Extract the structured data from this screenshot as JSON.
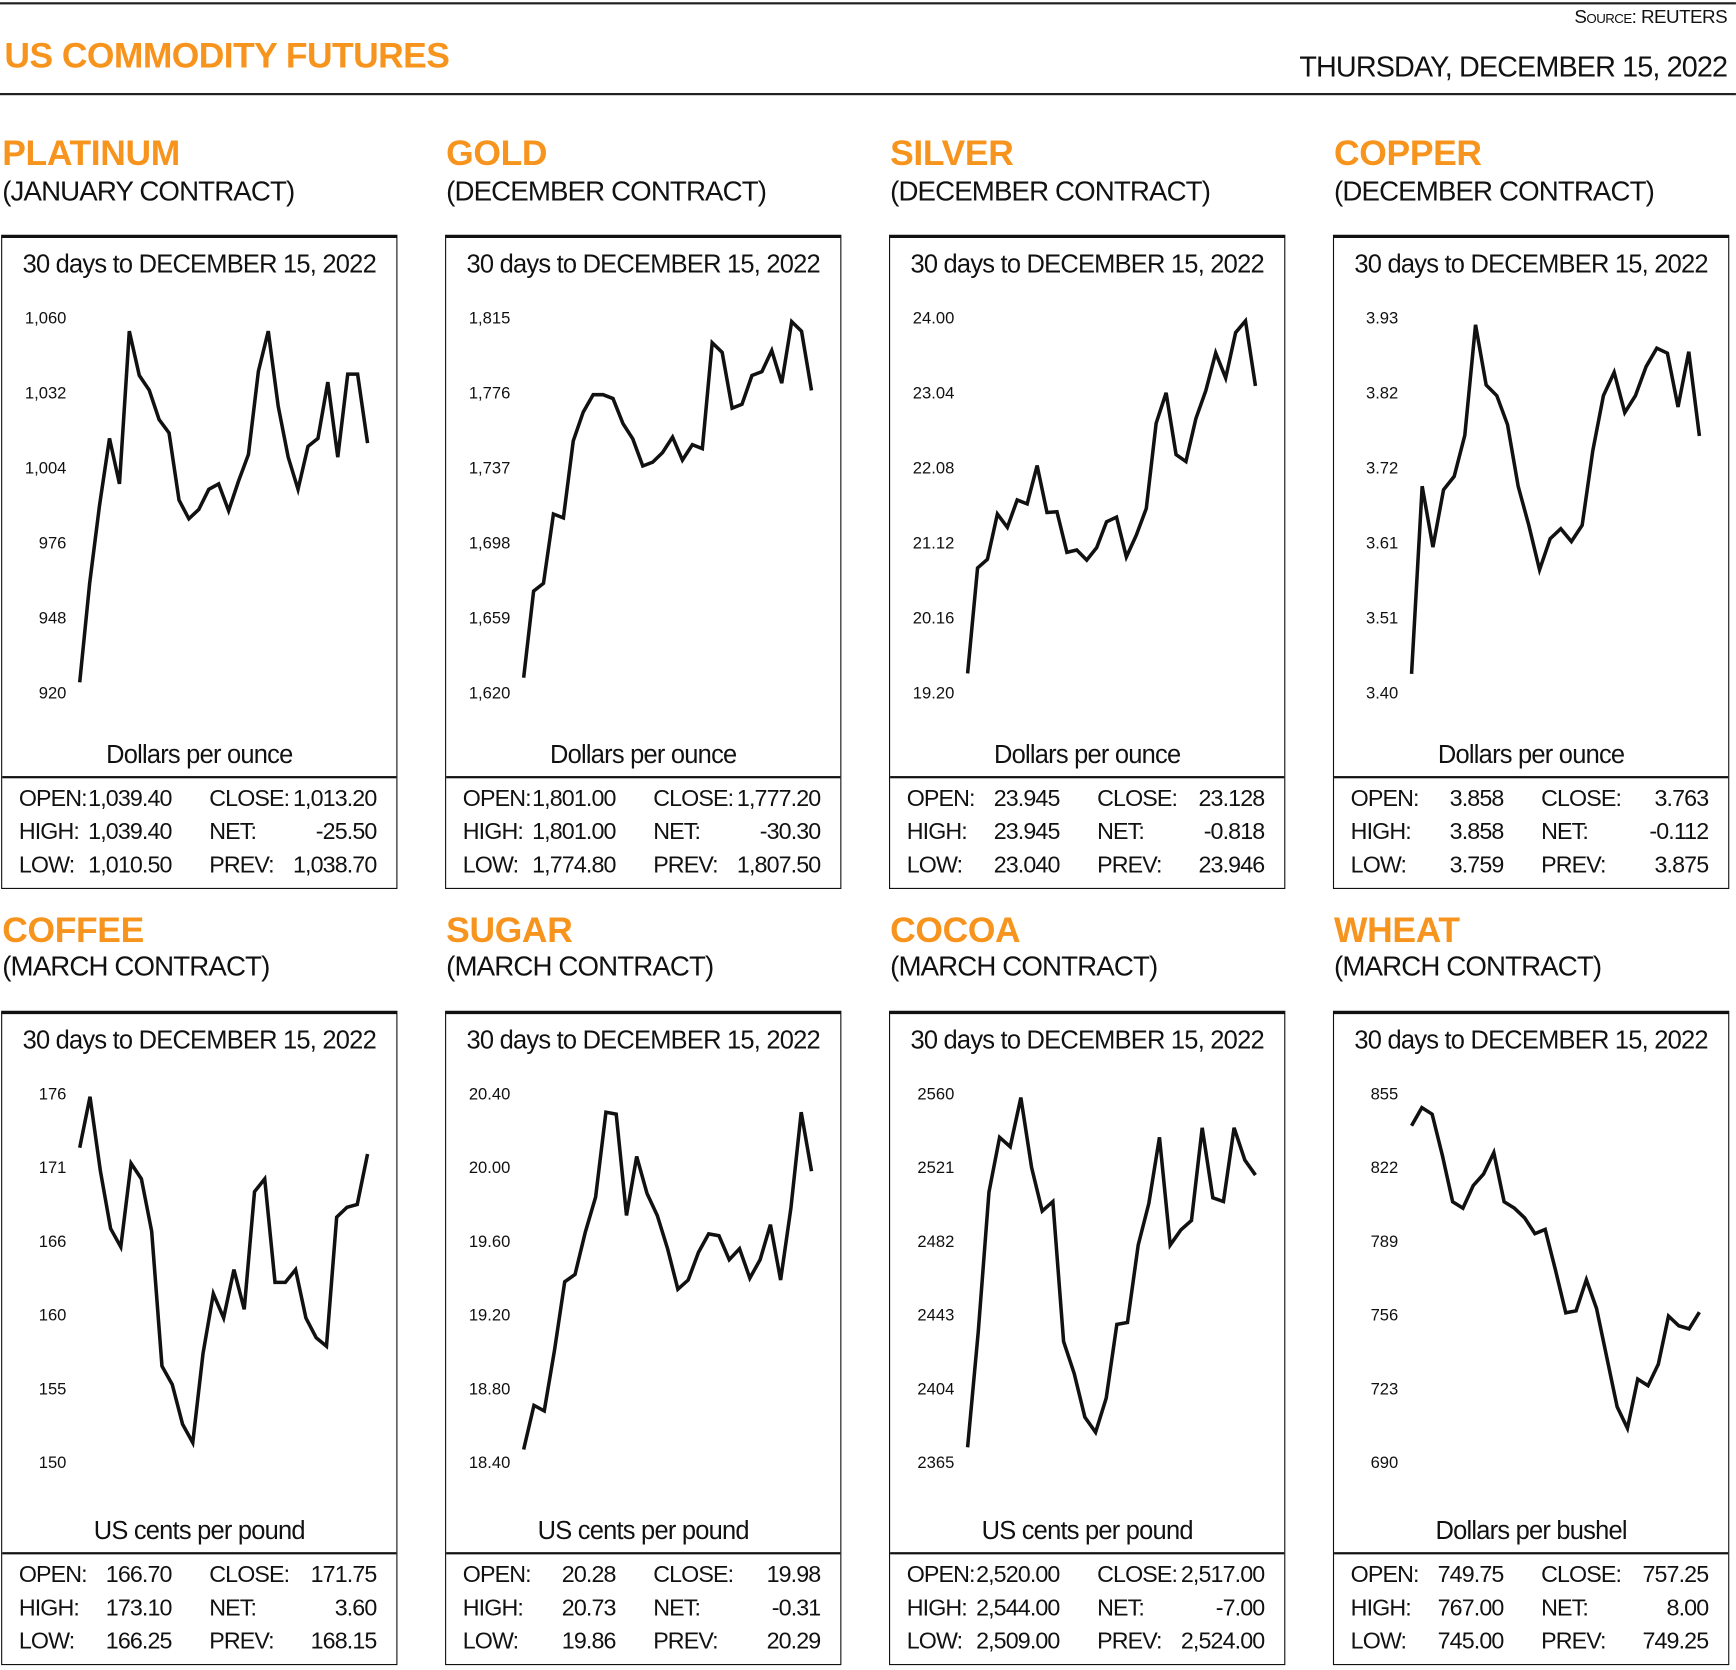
{
  "header": {
    "title": "US COMMODITY FUTURES",
    "source_label": "Source:",
    "source": "REUTERS",
    "date": "THURSDAY, DECEMBER 15, 2022"
  },
  "stat_labels": {
    "open": "OPEN:",
    "high": "HIGH:",
    "low": "LOW:",
    "close": "CLOSE:",
    "net": "NET:",
    "prev": "PREV:"
  },
  "colors": {
    "accent": "#f7941d",
    "line": "#111111"
  },
  "panels": [
    {
      "name": "PLATINUM",
      "contract": "(JANUARY CONTRACT)",
      "period": "30 days to DECEMBER 15, 2022",
      "unit": "Dollars per ounce",
      "stats": {
        "open": "1,039.40",
        "high": "1,039.40",
        "low": "1,010.50",
        "close": "1,013.20",
        "net": "-25.50",
        "prev": "1,038.70"
      }
    },
    {
      "name": "GOLD",
      "contract": "(DECEMBER CONTRACT)",
      "period": "30 days to DECEMBER 15, 2022",
      "unit": "Dollars per ounce",
      "stats": {
        "open": "1,801.00",
        "high": "1,801.00",
        "low": "1,774.80",
        "close": "1,777.20",
        "net": "-30.30",
        "prev": "1,807.50"
      }
    },
    {
      "name": "SILVER",
      "contract": "(DECEMBER CONTRACT)",
      "period": "30 days to DECEMBER 15, 2022",
      "unit": "Dollars per ounce",
      "stats": {
        "open": "23.945",
        "high": "23.945",
        "low": "23.040",
        "close": "23.128",
        "net": "-0.818",
        "prev": "23.946"
      }
    },
    {
      "name": "COPPER",
      "contract": "(DECEMBER CONTRACT)",
      "period": "30 days to DECEMBER 15, 2022",
      "unit": "Dollars per ounce",
      "stats": {
        "open": "3.858",
        "high": "3.858",
        "low": "3.759",
        "close": "3.763",
        "net": "-0.112",
        "prev": "3.875"
      }
    },
    {
      "name": "COFFEE",
      "contract": "(MARCH CONTRACT)",
      "period": "30 days to DECEMBER 15, 2022",
      "unit": "US cents per pound",
      "stats": {
        "open": "166.70",
        "high": "173.10",
        "low": "166.25",
        "close": "171.75",
        "net": "3.60",
        "prev": "168.15"
      }
    },
    {
      "name": "SUGAR",
      "contract": "(MARCH CONTRACT)",
      "period": "30 days to DECEMBER 15, 2022",
      "unit": "US cents per pound",
      "stats": {
        "open": "20.28",
        "high": "20.73",
        "low": "19.86",
        "close": "19.98",
        "net": "-0.31",
        "prev": "20.29"
      }
    },
    {
      "name": "COCOA",
      "contract": "(MARCH CONTRACT)",
      "period": "30 days to DECEMBER 15, 2022",
      "unit": "US cents per pound",
      "stats": {
        "open": "2,520.00",
        "high": "2,544.00",
        "low": "2,509.00",
        "close": "2,517.00",
        "net": "-7.00",
        "prev": "2,524.00"
      }
    },
    {
      "name": "WHEAT",
      "contract": "(MARCH CONTRACT)",
      "period": "30 days to DECEMBER 15, 2022",
      "unit": "Dollars per bushel",
      "stats": {
        "open": "749.75",
        "high": "767.00",
        "low": "745.00",
        "close": "757.25",
        "net": "8.00",
        "prev": "749.25"
      }
    }
  ],
  "chart_data": [
    {
      "type": "line",
      "title": "PLATINUM",
      "ylabel": "Dollars per ounce",
      "ylim": [
        920,
        1060
      ],
      "yticks": [
        "1,060",
        "1,032",
        "1,004",
        "976",
        "948",
        "920"
      ],
      "values": [
        924,
        961,
        990,
        1015,
        998,
        1055,
        1038.5,
        1033,
        1022,
        1017,
        992,
        985,
        988.5,
        996,
        998,
        988,
        999,
        1009,
        1040,
        1055,
        1027,
        1008,
        996,
        1012,
        1015,
        1036,
        1008,
        1039,
        1039,
        1013.2
      ]
    },
    {
      "type": "line",
      "title": "GOLD",
      "ylabel": "Dollars per ounce",
      "ylim": [
        1620,
        1815
      ],
      "yticks": [
        "1,815",
        "1,776",
        "1,737",
        "1,698",
        "1,659",
        "1,620"
      ],
      "values": [
        1628,
        1673,
        1677,
        1713,
        1711,
        1751,
        1766,
        1775,
        1775,
        1773,
        1760,
        1752,
        1738,
        1740,
        1745,
        1753,
        1741,
        1749,
        1747,
        1802,
        1797,
        1768,
        1770,
        1785,
        1787,
        1798,
        1781,
        1813,
        1808,
        1777.2
      ]
    },
    {
      "type": "line",
      "title": "SILVER",
      "ylabel": "Dollars per ounce",
      "ylim": [
        19.2,
        24.0
      ],
      "yticks": [
        "24.00",
        "23.04",
        "22.08",
        "21.12",
        "20.16",
        "19.20"
      ],
      "values": [
        19.45,
        20.8,
        20.91,
        21.49,
        21.32,
        21.67,
        21.62,
        22.11,
        21.51,
        21.52,
        21.0,
        21.03,
        20.9,
        21.06,
        21.39,
        21.45,
        20.94,
        21.22,
        21.56,
        22.65,
        23.04,
        22.25,
        22.16,
        22.71,
        23.07,
        23.55,
        23.23,
        23.81,
        23.96,
        23.128
      ]
    },
    {
      "type": "line",
      "title": "COPPER",
      "ylabel": "Dollars per ounce",
      "ylim": [
        3.4,
        3.93
      ],
      "yticks": [
        "3.93",
        "3.82",
        "3.72",
        "3.61",
        "3.51",
        "3.40"
      ],
      "values": [
        3.427,
        3.692,
        3.606,
        3.687,
        3.706,
        3.764,
        3.92,
        3.835,
        3.82,
        3.779,
        3.692,
        3.637,
        3.574,
        3.618,
        3.632,
        3.614,
        3.637,
        3.742,
        3.82,
        3.853,
        3.796,
        3.82,
        3.861,
        3.887,
        3.88,
        3.804,
        3.882,
        3.763
      ]
    },
    {
      "type": "line",
      "title": "COFFEE",
      "ylabel": "US cents per pound",
      "ylim": [
        150,
        176
      ],
      "yticks": [
        "176",
        "171",
        "166",
        "160",
        "155",
        "150"
      ],
      "values": [
        172.2,
        175.8,
        170.6,
        166.5,
        165.2,
        171.1,
        170.0,
        166.3,
        156.8,
        155.5,
        152.7,
        151.4,
        157.7,
        161.9,
        160.2,
        163.6,
        160.8,
        169.1,
        170.0,
        162.7,
        162.7,
        163.6,
        160.2,
        158.8,
        158.2,
        167.3,
        168.0,
        168.2,
        171.75
      ]
    },
    {
      "type": "line",
      "title": "SUGAR",
      "ylabel": "US cents per pound",
      "ylim": [
        18.4,
        20.4
      ],
      "yticks": [
        "20.40",
        "20.00",
        "19.60",
        "19.20",
        "18.80",
        "18.40"
      ],
      "values": [
        18.47,
        18.71,
        18.68,
        19.01,
        19.38,
        19.42,
        19.65,
        19.84,
        20.3,
        20.29,
        19.74,
        20.06,
        19.86,
        19.74,
        19.56,
        19.34,
        19.39,
        19.54,
        19.64,
        19.63,
        19.5,
        19.56,
        19.4,
        19.5,
        19.69,
        19.39,
        19.78,
        20.3,
        19.98
      ]
    },
    {
      "type": "line",
      "title": "COCOA",
      "ylabel": "US cents per pound",
      "ylim": [
        2365,
        2560
      ],
      "yticks": [
        "2560",
        "2521",
        "2482",
        "2443",
        "2404",
        "2365"
      ],
      "values": [
        2373,
        2434,
        2508,
        2537,
        2532,
        2558,
        2521,
        2498,
        2503,
        2429,
        2412,
        2389,
        2381,
        2399,
        2438,
        2439,
        2480,
        2502,
        2537,
        2480,
        2488,
        2493,
        2542,
        2505,
        2503,
        2542,
        2525,
        2517
      ]
    },
    {
      "type": "line",
      "title": "WHEAT",
      "ylabel": "Dollars per bushel",
      "ylim": [
        690,
        855
      ],
      "yticks": [
        "855",
        "822",
        "789",
        "756",
        "723",
        "690"
      ],
      "values": [
        840.7,
        848.8,
        845.9,
        827.3,
        806.7,
        803.8,
        813.9,
        819.1,
        828.7,
        806.7,
        803.8,
        799.5,
        792.4,
        794.3,
        776.1,
        757.0,
        757.9,
        771.8,
        758.9,
        736.9,
        714.9,
        705.3,
        727.3,
        724.4,
        734.0,
        755.5,
        751.2,
        749.8,
        757.25
      ]
    }
  ]
}
